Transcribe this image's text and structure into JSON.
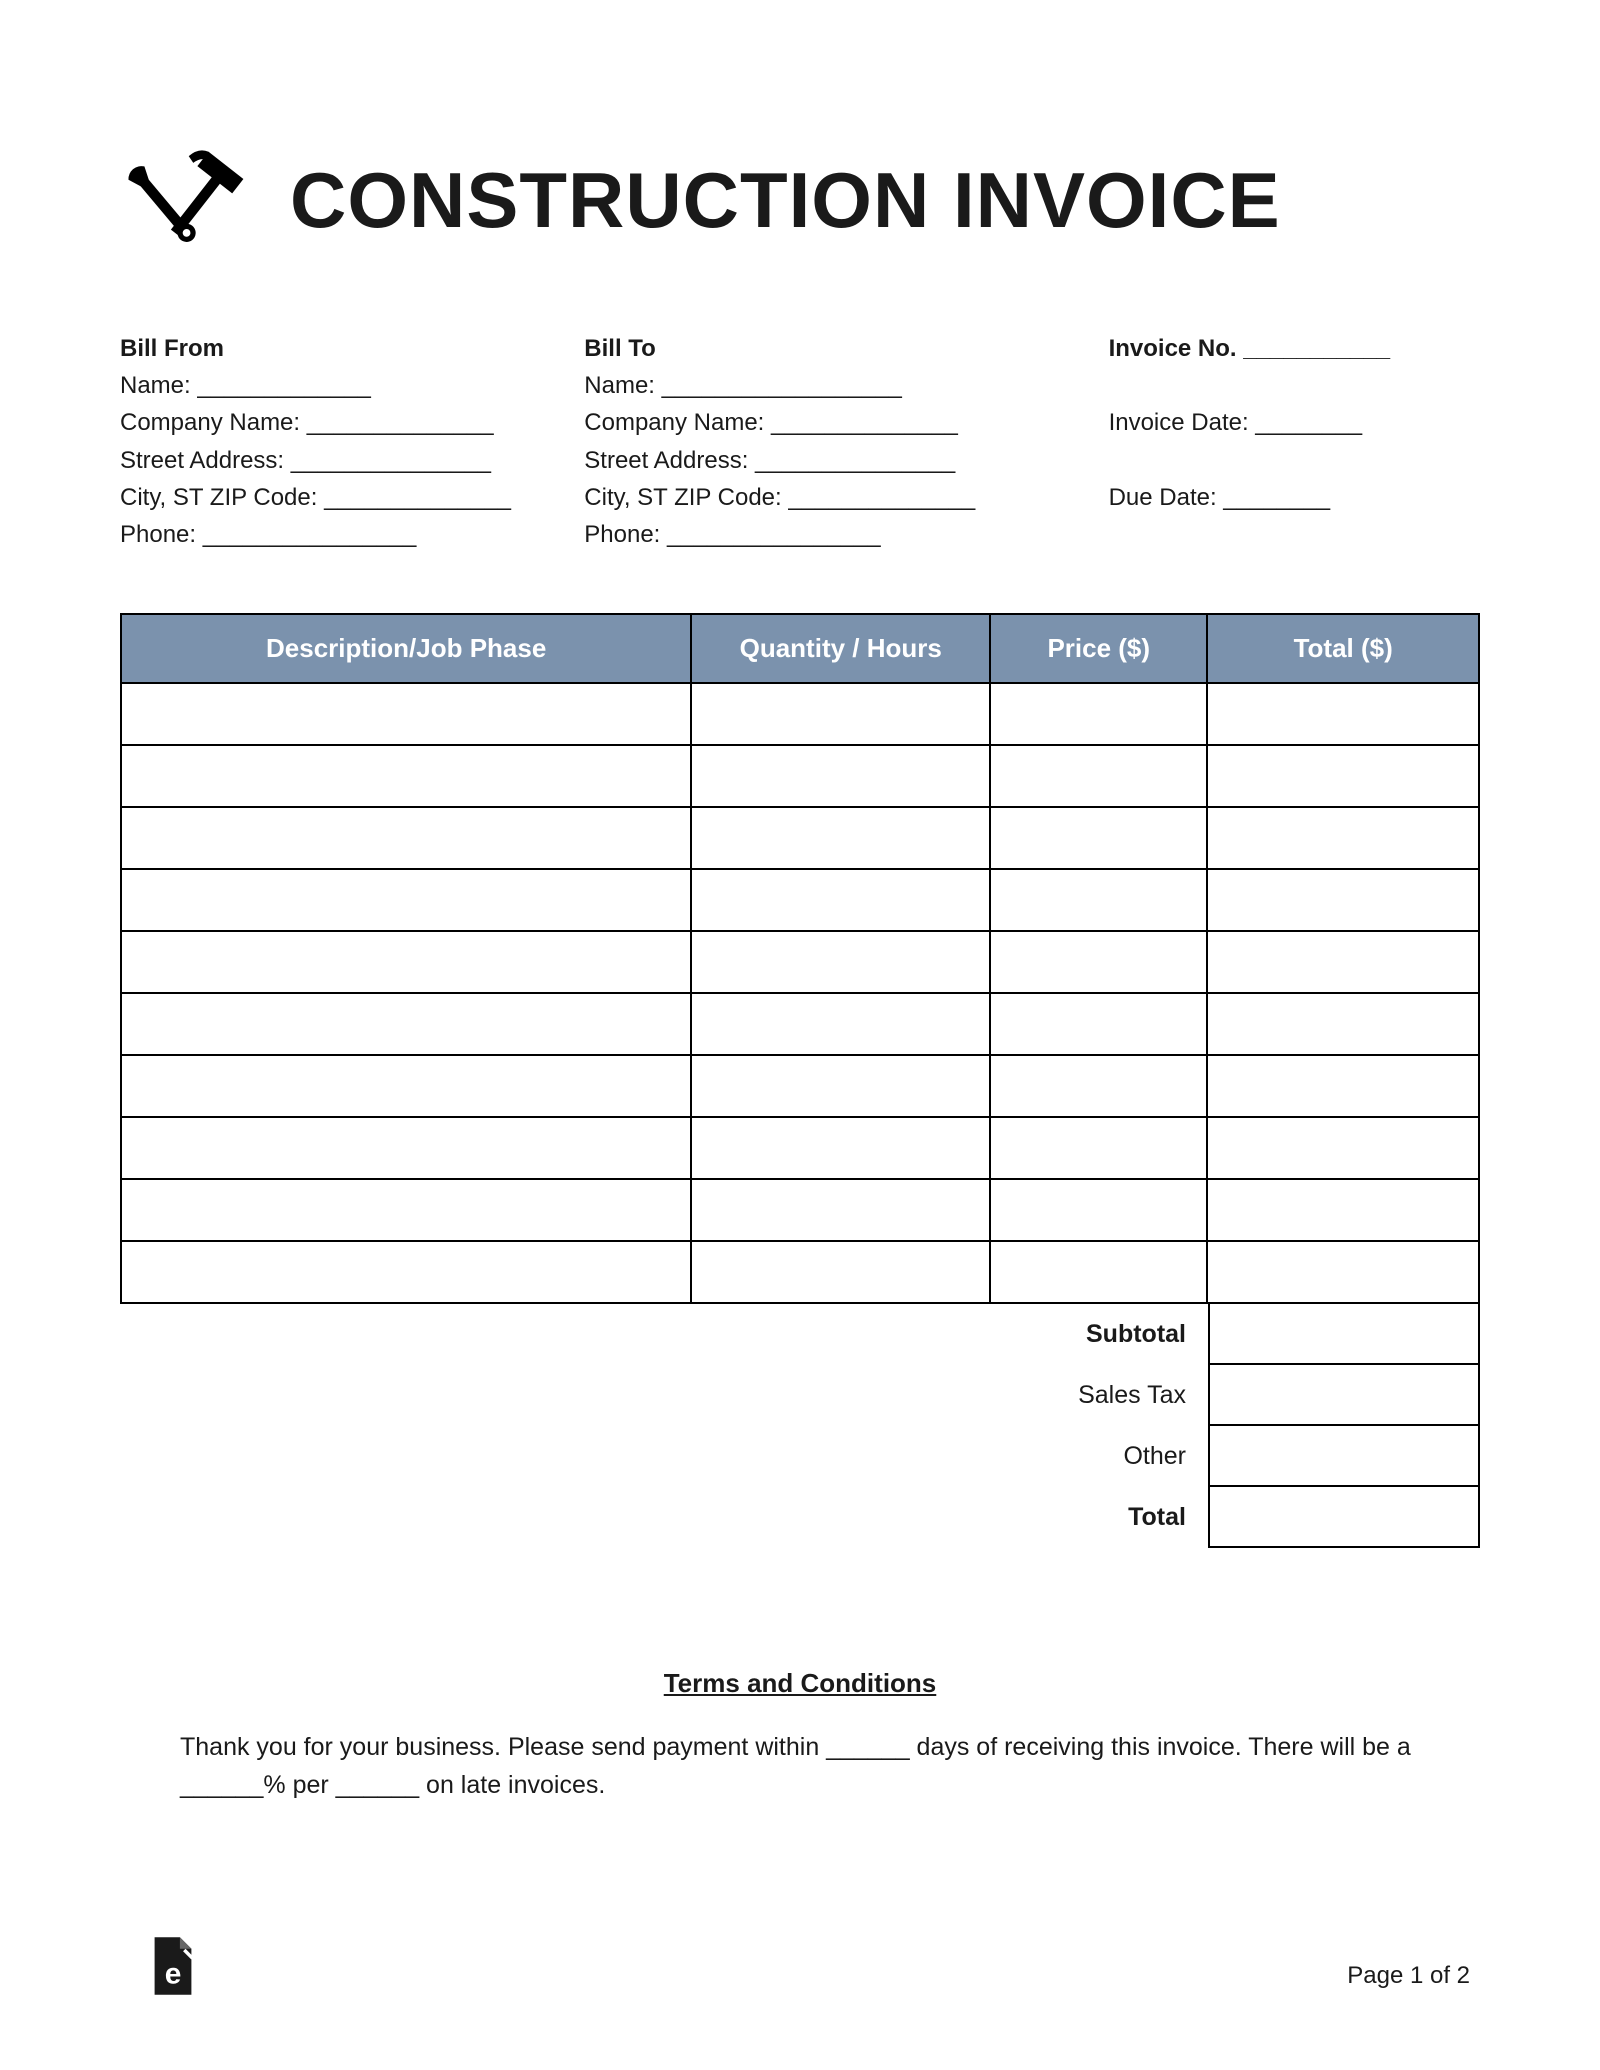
{
  "title": "CONSTRUCTION INVOICE",
  "billFrom": {
    "heading": "Bill From",
    "lines": [
      "Name: _____________",
      "Company Name: ______________",
      "Street Address: _______________",
      "City, ST ZIP Code: ______________",
      "Phone: ________________"
    ]
  },
  "billTo": {
    "heading": "Bill To",
    "lines": [
      "Name: __________________",
      "Company Name: ______________",
      "Street Address: _______________",
      "City, ST ZIP Code: ______________",
      "Phone: ________________"
    ]
  },
  "meta": {
    "invoiceNoLabel": "Invoice No. ___________",
    "invoiceDateLabel": "Invoice Date: ________",
    "dueDateLabel": "Due Date: ________"
  },
  "table": {
    "headers": {
      "description": "Description/Job Phase",
      "quantity": "Quantity / Hours",
      "price": "Price ($)",
      "total": "Total ($)"
    },
    "rowCount": 10,
    "header_bg": "#7b92ad",
    "header_fg": "#ffffff",
    "border_color": "#000000"
  },
  "summary": {
    "subtotal": "Subtotal",
    "salesTax": "Sales Tax",
    "other": "Other",
    "total": "Total"
  },
  "terms": {
    "heading": "Terms and Conditions",
    "body": "Thank you for your business. Please send payment within ______ days of receiving this invoice. There will be a ______% per ______ on late invoices."
  },
  "pageNumber": "Page 1 of 2"
}
